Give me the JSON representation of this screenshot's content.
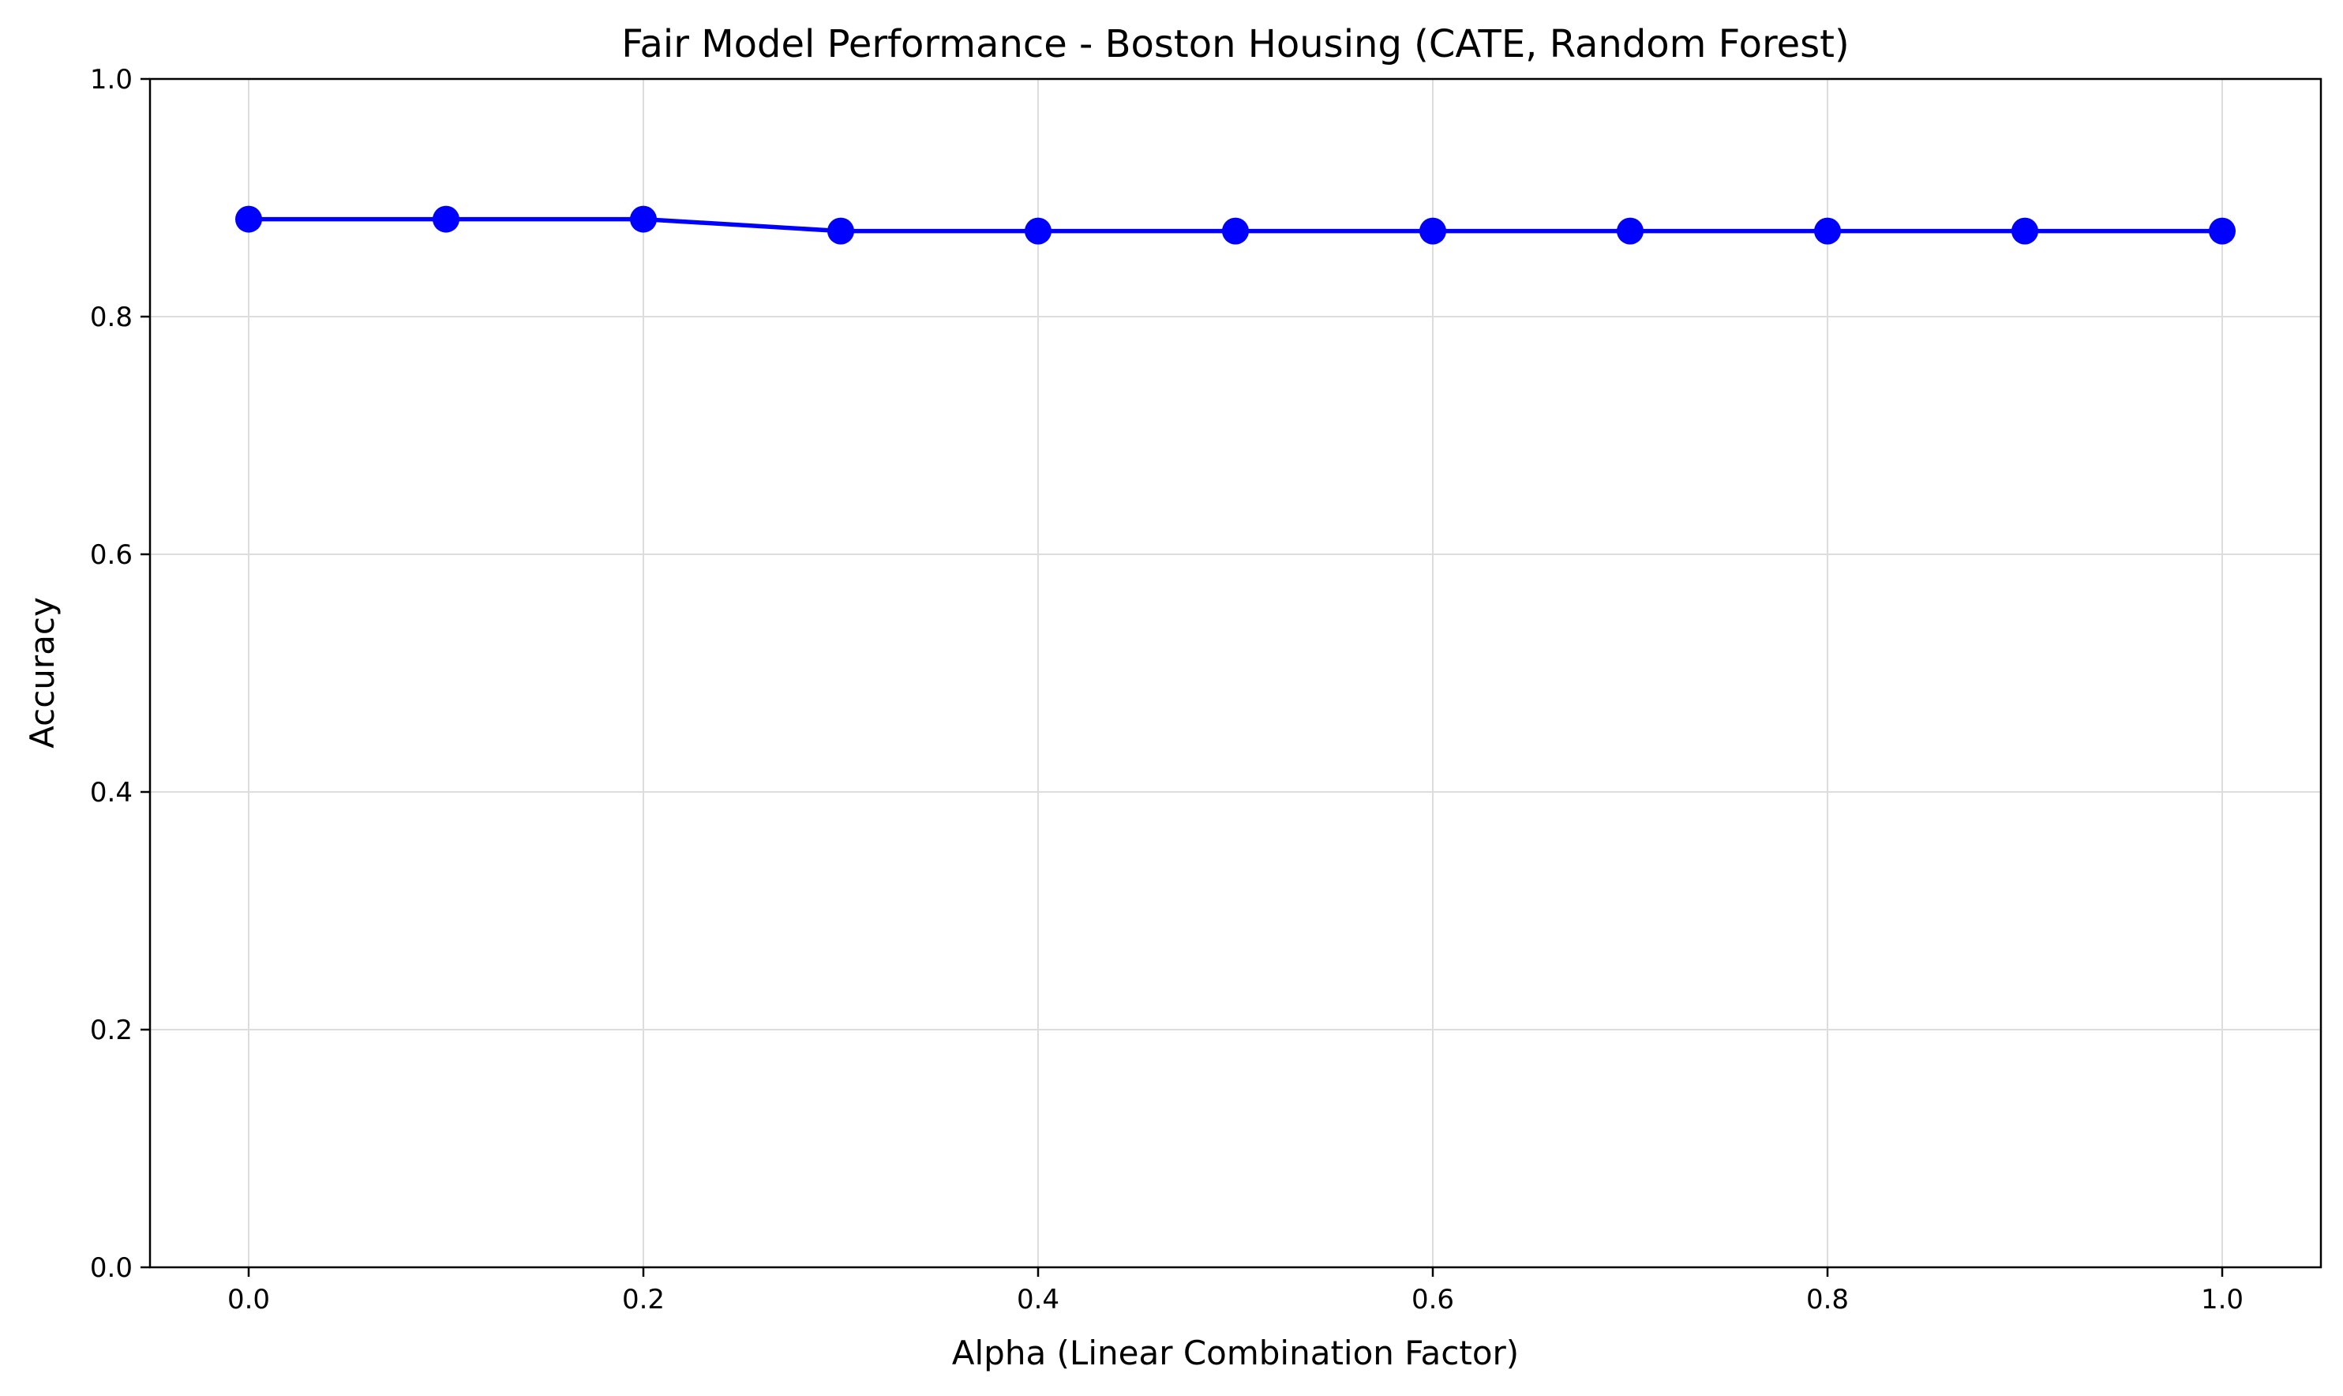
{
  "chart_data": {
    "type": "line",
    "title": "Fair Model Performance - Boston Housing (CATE, Random Forest)",
    "xlabel": "Alpha (Linear Combination Factor)",
    "ylabel": "Accuracy",
    "xlim": [
      -0.05,
      1.05
    ],
    "ylim": [
      0.0,
      1.0
    ],
    "xticks": [
      0.0,
      0.2,
      0.4,
      0.6,
      0.8,
      1.0
    ],
    "xtick_labels": [
      "0.0",
      "0.2",
      "0.4",
      "0.6",
      "0.8",
      "1.0"
    ],
    "yticks": [
      0.0,
      0.2,
      0.4,
      0.6,
      0.8,
      1.0
    ],
    "ytick_labels": [
      "0.0",
      "0.2",
      "0.4",
      "0.6",
      "0.8",
      "1.0"
    ],
    "grid": true,
    "series": [
      {
        "color": "#0000ff",
        "marker": "circle",
        "x": [
          0.0,
          0.1,
          0.2,
          0.3,
          0.4,
          0.5,
          0.6,
          0.7,
          0.8,
          0.9,
          1.0
        ],
        "y": [
          0.882,
          0.882,
          0.882,
          0.872,
          0.872,
          0.872,
          0.872,
          0.872,
          0.872,
          0.872,
          0.872
        ]
      }
    ]
  }
}
